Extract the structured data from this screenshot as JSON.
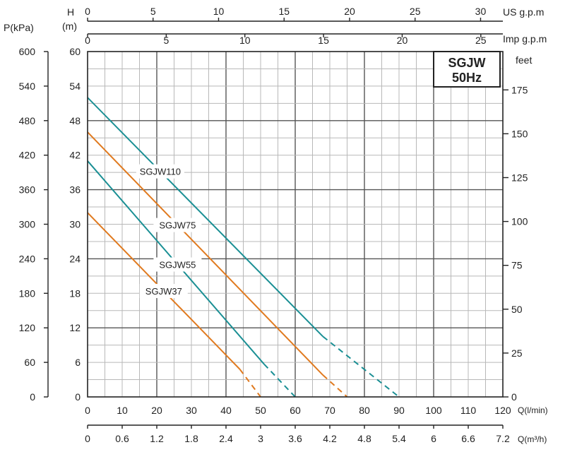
{
  "chart_data": {
    "type": "line",
    "title": "SGJW",
    "subtitle": "50Hz",
    "axis_titles": {
      "pressure": "P(kPa)",
      "head": "H\n(m)",
      "us_gpm": "US g.p.m",
      "imp_gpm": "Imp g.p.m",
      "feet": "feet",
      "q_lmin": "Q(l/min)",
      "q_m3h": "Q(m³/h)"
    },
    "x_q_lmin": {
      "range": [
        0,
        120
      ],
      "ticks": [
        "0",
        "10",
        "20",
        "30",
        "40",
        "50",
        "60",
        "70",
        "80",
        "90",
        "100",
        "110",
        "120"
      ]
    },
    "x_q_m3h": {
      "range": [
        0,
        7.2
      ],
      "ticks": [
        "0",
        "0.6",
        "1.2",
        "1.8",
        "2.4",
        "3",
        "3.6",
        "4.2",
        "4.8",
        "5.4",
        "6",
        "6.6",
        "7.2"
      ]
    },
    "x_us_gpm": {
      "range": [
        0,
        31.7
      ],
      "ticks": [
        "0",
        "5",
        "10",
        "15",
        "20",
        "25",
        "30"
      ]
    },
    "x_imp_gpm": {
      "range": [
        0,
        26.4
      ],
      "ticks": [
        "0",
        "5",
        "10",
        "15",
        "20",
        "25"
      ]
    },
    "y_head_m": {
      "range": [
        0,
        60
      ],
      "ticks": [
        "0",
        "6",
        "12",
        "18",
        "24",
        "30",
        "36",
        "42",
        "48",
        "54",
        "60"
      ]
    },
    "y_pressure_kpa": {
      "range": [
        0,
        600
      ],
      "ticks": [
        "0",
        "60",
        "120",
        "180",
        "240",
        "300",
        "360",
        "420",
        "480",
        "540",
        "600"
      ]
    },
    "y_feet": {
      "range": [
        0,
        196.85
      ],
      "ticks": [
        "0",
        "25",
        "50",
        "75",
        "100",
        "125",
        "150",
        "175"
      ]
    },
    "grid": true,
    "series": [
      {
        "name": "SGJW110",
        "color": "#1a8f94",
        "x": [
          0,
          68
        ],
        "y": [
          52,
          10.5
        ],
        "dashed_to": [
          90,
          0
        ]
      },
      {
        "name": "SGJW75",
        "color": "#e07a1f",
        "x": [
          0,
          68
        ],
        "y": [
          46,
          3.8
        ],
        "dashed_to": [
          75,
          0
        ]
      },
      {
        "name": "SGJW55",
        "color": "#1a8f94",
        "x": [
          0,
          51
        ],
        "y": [
          41,
          5.7
        ],
        "dashed_to": [
          60,
          0
        ]
      },
      {
        "name": "SGJW37",
        "color": "#e07a1f",
        "x": [
          0,
          44
        ],
        "y": [
          32,
          4.8
        ],
        "dashed_to": [
          50,
          0
        ]
      }
    ]
  }
}
